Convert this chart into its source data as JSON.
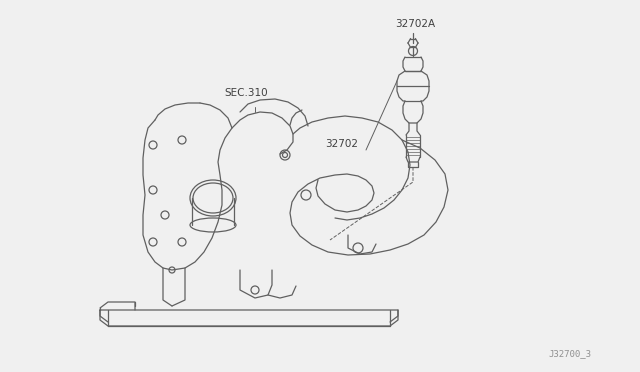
{
  "bg_color": "#f0f0f0",
  "line_color": "#606060",
  "text_color": "#404040",
  "gray_text": "#909090",
  "label_32702A": "32702A",
  "label_32702": "32702",
  "label_SEC310": "SEC.310",
  "label_ref": "J32700_3",
  "font_size_labels": 7.5,
  "font_size_ref": 6.5,
  "lw": 0.9,
  "lw_thin": 0.5
}
